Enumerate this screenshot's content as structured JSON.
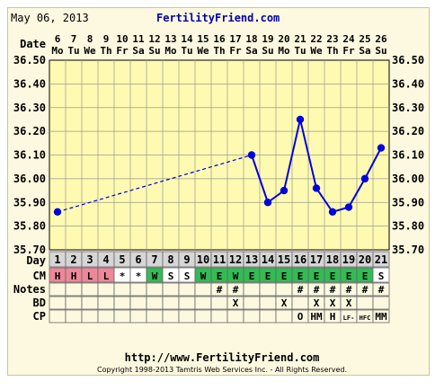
{
  "header": {
    "date": "May 06, 2013",
    "brand": "FertilityFriend.com"
  },
  "row_labels": {
    "date": "Date",
    "day": "Day",
    "cm": "CM",
    "notes": "Notes",
    "bd": "BD",
    "cp": "CP"
  },
  "chart_data": {
    "type": "line",
    "x": [
      "6",
      "7",
      "8",
      "9",
      "10",
      "11",
      "12",
      "13",
      "14",
      "15",
      "16",
      "17",
      "18",
      "19",
      "20",
      "21",
      "22",
      "23",
      "24",
      "25",
      "26"
    ],
    "weekdays": [
      "Mo",
      "Tu",
      "We",
      "Th",
      "Fr",
      "Sa",
      "Su",
      "Mo",
      "Tu",
      "We",
      "Th",
      "Fr",
      "Sa",
      "Su",
      "Mo",
      "Tu",
      "We",
      "Th",
      "Fr",
      "Sa",
      "Su"
    ],
    "series": [
      {
        "values": [
          35.86,
          null,
          null,
          null,
          null,
          null,
          null,
          null,
          null,
          null,
          null,
          null,
          36.1,
          35.9,
          35.95,
          36.25,
          35.96,
          35.86,
          35.88,
          36.0,
          36.13
        ]
      }
    ],
    "ylim": [
      35.7,
      36.5
    ],
    "yticks": [
      "36.50",
      "36.40",
      "36.30",
      "36.20",
      "36.10",
      "36.00",
      "35.90",
      "35.80",
      "35.70"
    ],
    "grid": true,
    "line_color": "#0000dd",
    "dashed_segment": [
      "6",
      "18"
    ]
  },
  "cycle_days": [
    "1",
    "2",
    "3",
    "4",
    "5",
    "6",
    "7",
    "8",
    "9",
    "10",
    "11",
    "12",
    "13",
    "14",
    "15",
    "16",
    "17",
    "18",
    "19",
    "20",
    "21"
  ],
  "cm": [
    "H",
    "H",
    "L",
    "L",
    "*",
    "*",
    "W",
    "S",
    "S",
    "W",
    "E",
    "W",
    "E",
    "E",
    "E",
    "E",
    "E",
    "E",
    "E",
    "E",
    "S"
  ],
  "cm_colors": {
    "H": "#ee8899",
    "L": "#ee8899",
    "W": "#33bb55",
    "E": "#33bb55",
    "S": "#ffffff",
    "*": "#ffffff"
  },
  "notes": [
    "",
    "",
    "",
    "",
    "",
    "",
    "",
    "",
    "",
    "",
    "#",
    "#",
    "",
    "",
    "",
    "#",
    "#",
    "#",
    "#",
    "#",
    "#"
  ],
  "bd": [
    "",
    "",
    "",
    "",
    "",
    "",
    "",
    "",
    "",
    "",
    "",
    "X",
    "",
    "",
    "X",
    "",
    "X",
    "X",
    "X",
    "",
    ""
  ],
  "cp": [
    "",
    "",
    "",
    "",
    "",
    "",
    "",
    "",
    "",
    "",
    "",
    "",
    "",
    "",
    "",
    "O",
    "HM",
    "H",
    "LF-",
    "HFC",
    "MM"
  ],
  "colors": {
    "plot_bg": "#fffab2",
    "grid": "#9a9a88",
    "day_row_bg": "#d6d6d6",
    "panel_bg": "#fdf9e0"
  },
  "footer": {
    "url": "http://www.FertilityFriend.com",
    "copyright": "Copyright 1998-2013 Tamtris Web Services Inc. - All Rights Reserved."
  }
}
